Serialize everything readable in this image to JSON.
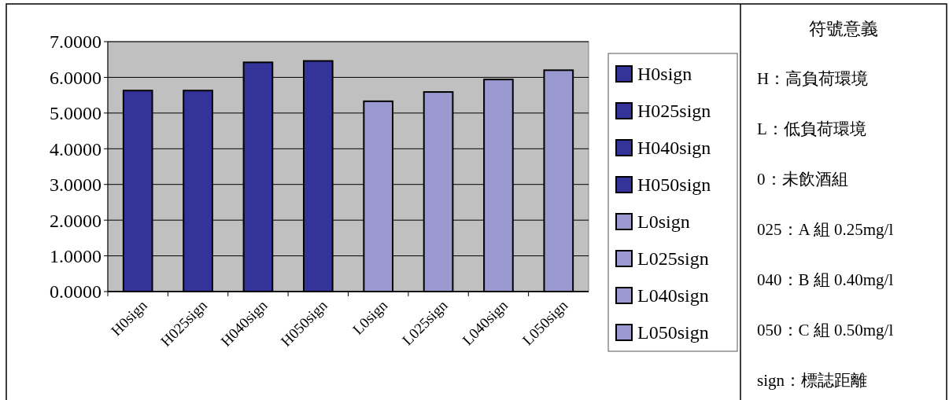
{
  "chart_data": {
    "type": "bar",
    "categories": [
      "H0sign",
      "H025sign",
      "H040sign",
      "H050sign",
      "L0sign",
      "L025sign",
      "L040sign",
      "L050sign"
    ],
    "series": [
      {
        "name": "H0sign",
        "color": "#333399",
        "values": [
          5.63,
          null,
          null,
          null,
          null,
          null,
          null,
          null
        ]
      },
      {
        "name": "H025sign",
        "color": "#333399",
        "values": [
          null,
          5.63,
          null,
          null,
          null,
          null,
          null,
          null
        ]
      },
      {
        "name": "H040sign",
        "color": "#333399",
        "values": [
          null,
          null,
          6.42,
          null,
          null,
          null,
          null,
          null
        ]
      },
      {
        "name": "H050sign",
        "color": "#333399",
        "values": [
          null,
          null,
          null,
          6.46,
          null,
          null,
          null,
          null
        ]
      },
      {
        "name": "L0sign",
        "color": "#9a9ad0",
        "values": [
          null,
          null,
          null,
          null,
          5.33,
          null,
          null,
          null
        ]
      },
      {
        "name": "L025sign",
        "color": "#9a9ad0",
        "values": [
          null,
          null,
          null,
          null,
          null,
          5.59,
          null,
          null
        ]
      },
      {
        "name": "L040sign",
        "color": "#9a9ad0",
        "values": [
          null,
          null,
          null,
          null,
          null,
          null,
          5.94,
          null
        ]
      },
      {
        "name": "L050sign",
        "color": "#9a9ad0",
        "values": [
          null,
          null,
          null,
          null,
          null,
          null,
          null,
          6.2
        ]
      }
    ],
    "ylim": [
      0,
      7
    ],
    "yticks": [
      {
        "value": 0,
        "label": "0.0000"
      },
      {
        "value": 1,
        "label": "1.0000"
      },
      {
        "value": 2,
        "label": "2.0000"
      },
      {
        "value": 3,
        "label": "3.0000"
      },
      {
        "value": 4,
        "label": "4.0000"
      },
      {
        "value": 5,
        "label": "5.0000"
      },
      {
        "value": 6,
        "label": "6.0000"
      },
      {
        "value": 7,
        "label": "7.0000"
      }
    ],
    "grid": "y",
    "legend": "right",
    "annotations": [
      "符號意義",
      "H：高負荷環境",
      "L：低負荷環境",
      "0：未飲酒組",
      "025：A 組 0.25mg/l",
      "040：B 組 0.40mg/l",
      "050：C 組 0.50mg/l",
      "sign：標誌距離"
    ]
  }
}
